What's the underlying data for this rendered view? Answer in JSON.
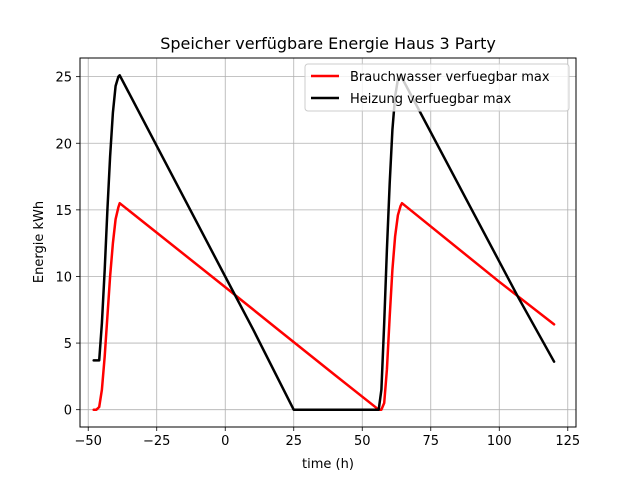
{
  "chart_data": {
    "type": "line",
    "title": "Speicher verfügbare Energie Haus 3 Party",
    "xlabel": "time (h)",
    "ylabel": "Energie kWh",
    "xlim": [
      -53,
      128
    ],
    "ylim": [
      -1.3,
      26.4
    ],
    "xticks": [
      -50,
      -25,
      0,
      25,
      50,
      75,
      100,
      125
    ],
    "yticks": [
      0,
      5,
      10,
      15,
      20,
      25
    ],
    "xtick_labels": [
      "−50",
      "−25",
      "0",
      "25",
      "50",
      "75",
      "100",
      "125"
    ],
    "ytick_labels": [
      "0",
      "5",
      "10",
      "15",
      "20",
      "25"
    ],
    "grid": true,
    "legend_position": "upper right",
    "series": [
      {
        "name": "Brauchwasser verfuegbar max",
        "color": "#ff0000",
        "points": [
          [
            -48,
            0.0
          ],
          [
            -47,
            0.0
          ],
          [
            -46,
            0.2
          ],
          [
            -45,
            1.5
          ],
          [
            -44,
            4.0
          ],
          [
            -43,
            7.0
          ],
          [
            -42,
            10.0
          ],
          [
            -41,
            12.5
          ],
          [
            -40,
            14.3
          ],
          [
            -39,
            15.2
          ],
          [
            -38.5,
            15.5
          ],
          [
            0,
            9.2
          ],
          [
            20,
            5.9
          ],
          [
            40,
            2.6
          ],
          [
            56,
            0.0
          ],
          [
            57,
            0.0
          ],
          [
            58,
            0.5
          ],
          [
            59,
            3.0
          ],
          [
            60,
            7.0
          ],
          [
            61,
            10.5
          ],
          [
            62,
            13.0
          ],
          [
            63,
            14.6
          ],
          [
            64,
            15.3
          ],
          [
            64.5,
            15.5
          ],
          [
            100,
            9.6
          ],
          [
            120,
            6.4
          ]
        ]
      },
      {
        "name": "Heizung verfuegbar max",
        "color": "#000000",
        "points": [
          [
            -48,
            3.7
          ],
          [
            -46,
            3.7
          ],
          [
            -45,
            6.5
          ],
          [
            -44,
            10.5
          ],
          [
            -43,
            15.0
          ],
          [
            -42,
            19.0
          ],
          [
            -41,
            22.3
          ],
          [
            -40,
            24.3
          ],
          [
            -39,
            25.0
          ],
          [
            -38.5,
            25.1
          ],
          [
            0,
            10.0
          ],
          [
            10,
            6.1
          ],
          [
            25,
            0.0
          ],
          [
            40,
            0.0
          ],
          [
            56,
            0.0
          ],
          [
            57,
            1.5
          ],
          [
            58,
            6.5
          ],
          [
            59,
            12.0
          ],
          [
            60,
            17.0
          ],
          [
            61,
            21.0
          ],
          [
            62,
            23.5
          ],
          [
            63,
            24.8
          ],
          [
            64,
            25.1
          ],
          [
            90,
            15.0
          ],
          [
            107,
            8.4
          ],
          [
            120,
            3.6
          ]
        ]
      }
    ]
  }
}
